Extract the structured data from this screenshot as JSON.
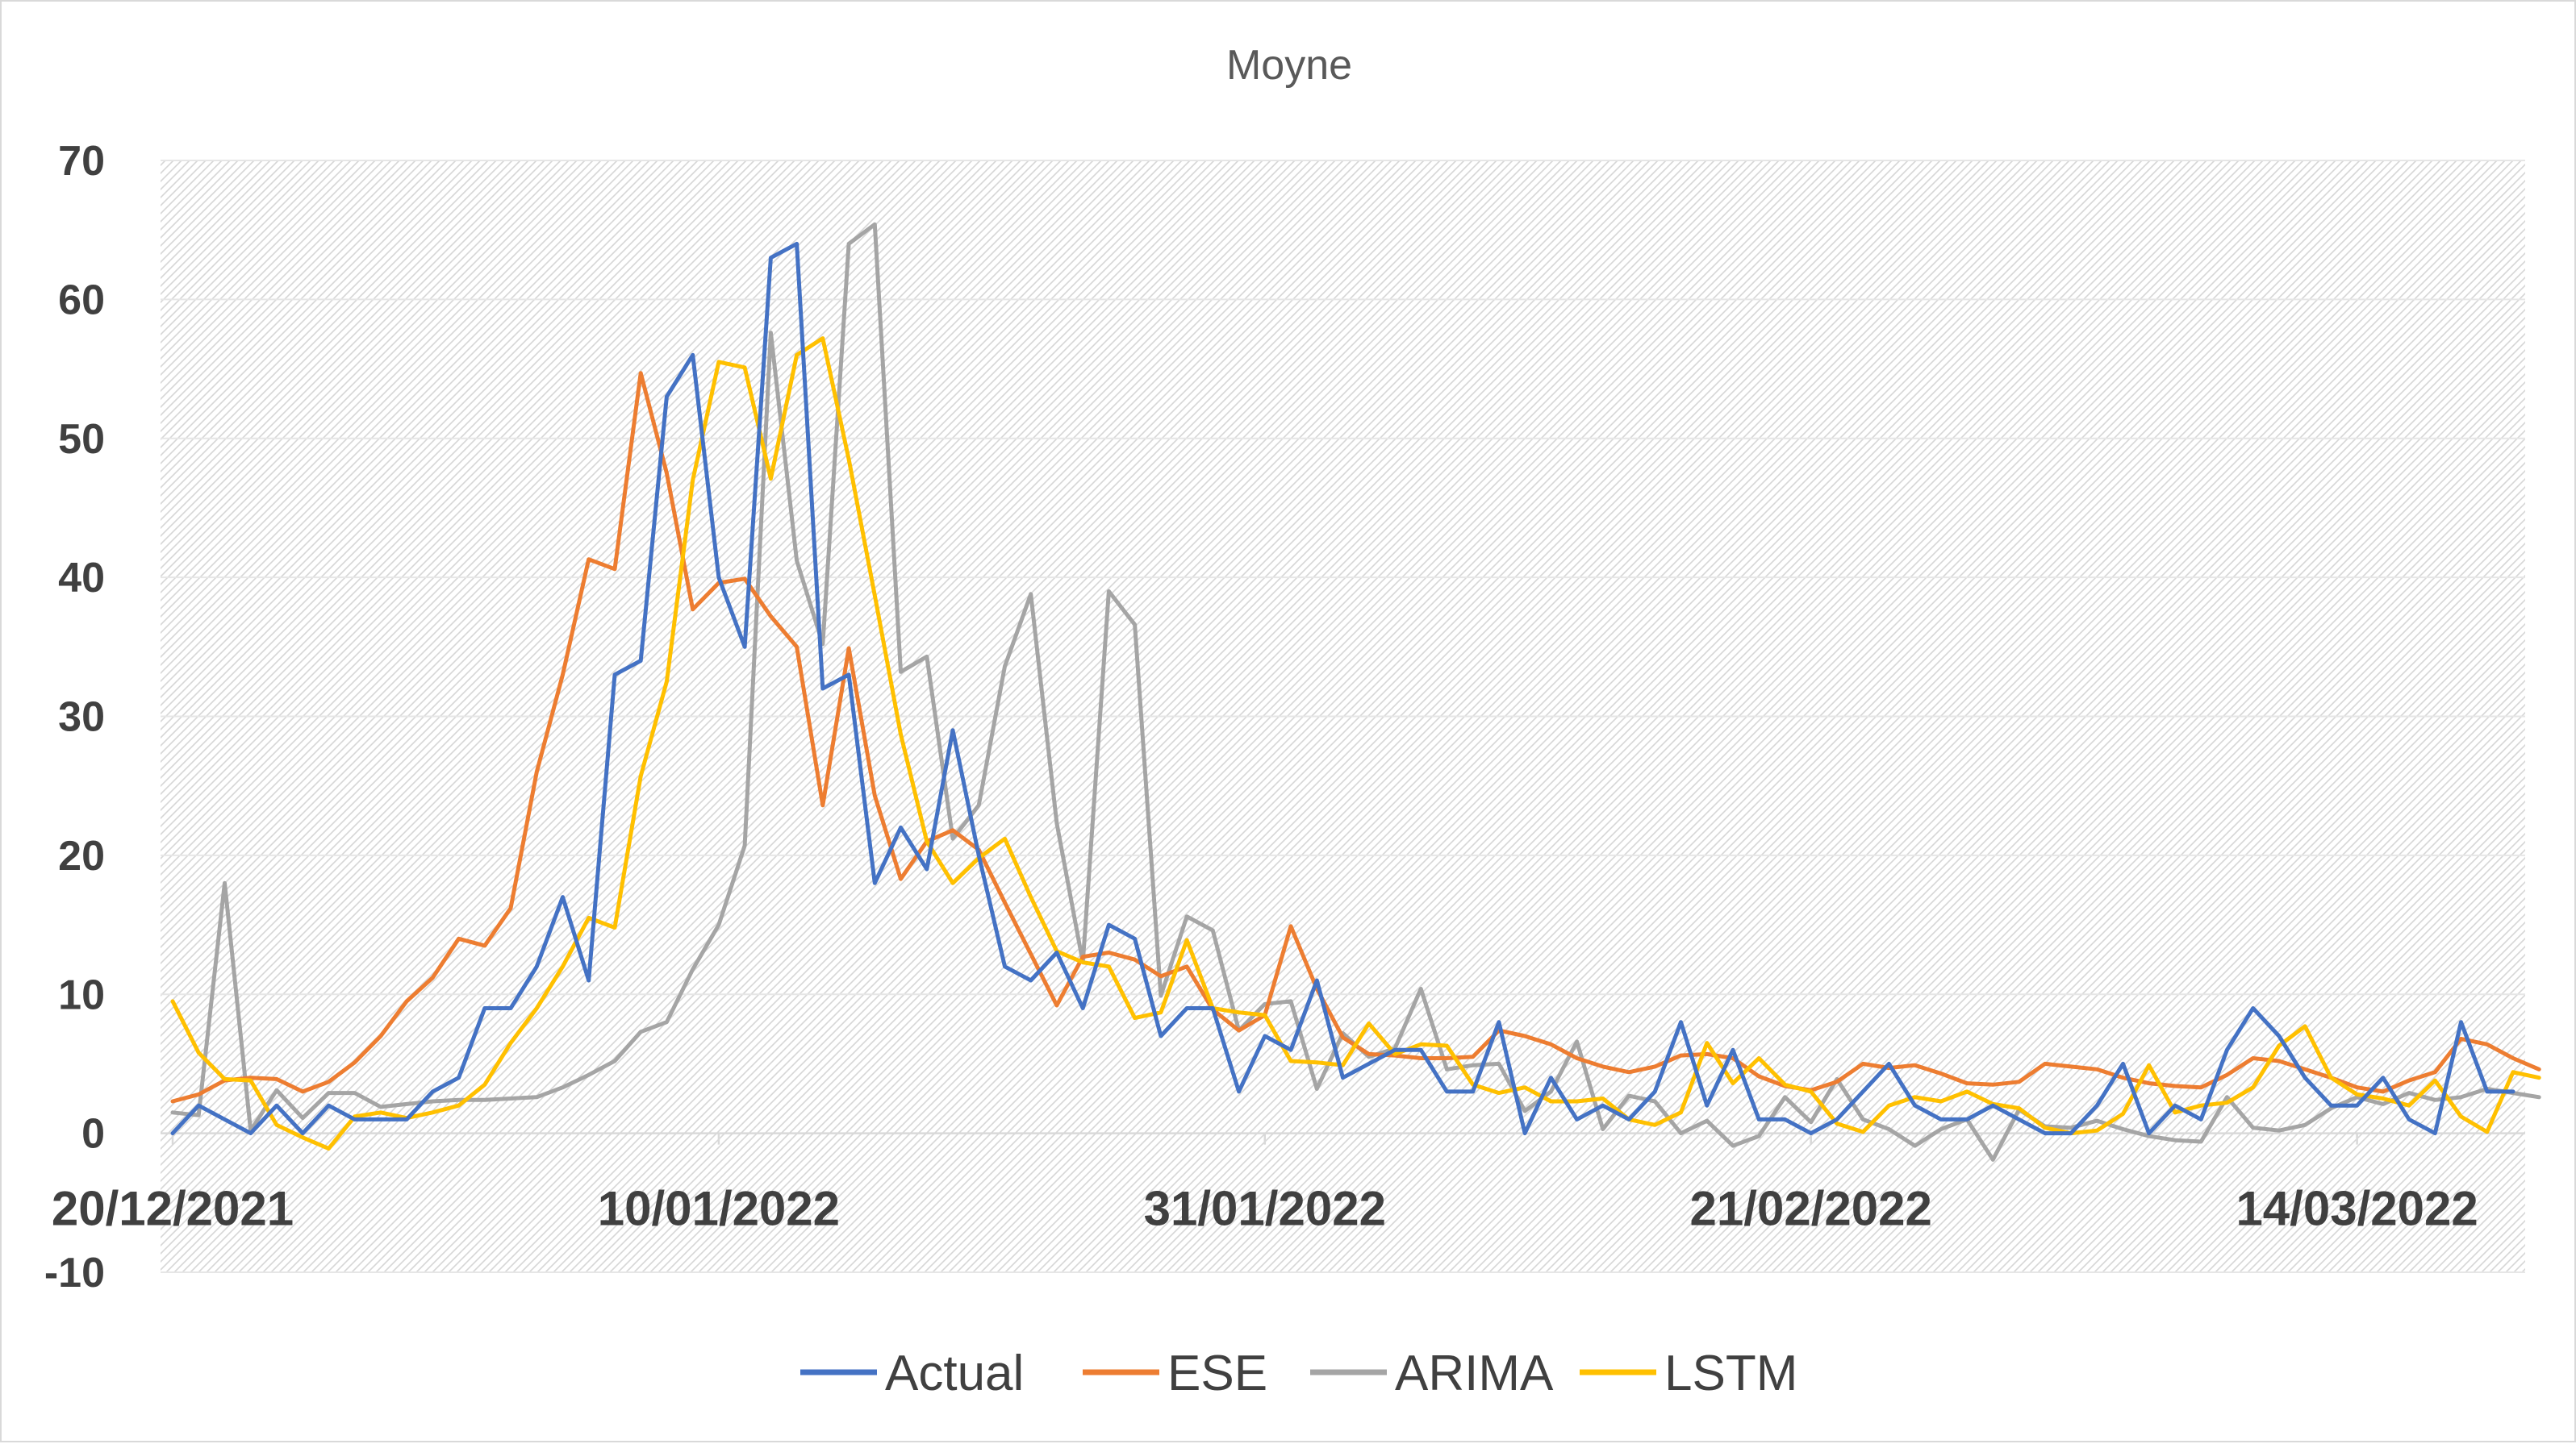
{
  "chart_data": {
    "type": "line",
    "title": "Moyne",
    "xlabel": "",
    "ylabel": "",
    "ylim": [
      -10,
      70
    ],
    "yticks": [
      -10,
      0,
      10,
      20,
      30,
      40,
      50,
      60,
      70
    ],
    "x_start": "20/12/2021",
    "x_end": "2022-03-27",
    "x_tick_labels": [
      "20/12/2021",
      "10/01/2022",
      "31/01/2022",
      "21/02/2022",
      "14/03/2022"
    ],
    "grid": true,
    "legend_position": "bottom",
    "series": [
      {
        "name": "Actual",
        "color": "#4472C4",
        "values": [
          0,
          2,
          1,
          0,
          2,
          0,
          2,
          1,
          1,
          1,
          3,
          4,
          9,
          9,
          12,
          17,
          11,
          33,
          34,
          53,
          56,
          40,
          35,
          63,
          64,
          32,
          33,
          18,
          22,
          19,
          29,
          20,
          12,
          11,
          13,
          9,
          15,
          14,
          7,
          9,
          9,
          3,
          7,
          6,
          11,
          4,
          5,
          6,
          6,
          3,
          3,
          8,
          0,
          4,
          1,
          2,
          1,
          3,
          8,
          2,
          6,
          1,
          1,
          0,
          1,
          3,
          5,
          2,
          1,
          1,
          2,
          1,
          0,
          0,
          2,
          5,
          0,
          2,
          1,
          6,
          9,
          7,
          4,
          2,
          2,
          4,
          1,
          0,
          8,
          3,
          3
        ]
      },
      {
        "name": "ESE",
        "color": "#ED7D31",
        "values": [
          2.3,
          2.8,
          3.8,
          4.0,
          3.9,
          3.0,
          3.7,
          5.1,
          7.0,
          9.5,
          11.2,
          14.0,
          13.5,
          16.2,
          26.0,
          33.0,
          41.3,
          40.6,
          54.7,
          47.5,
          37.7,
          39.6,
          39.9,
          37.2,
          35.0,
          23.6,
          34.9,
          24.3,
          18.3,
          21.0,
          21.8,
          20.4,
          16.6,
          12.9,
          9.2,
          12.7,
          13.0,
          12.5,
          11.3,
          12.0,
          8.9,
          7.4,
          8.5,
          14.9,
          10.4,
          6.9,
          5.7,
          5.6,
          5.4,
          5.4,
          5.5,
          7.4,
          7.0,
          6.4,
          5.4,
          4.8,
          4.4,
          4.8,
          5.6,
          5.7,
          5.4,
          4.1,
          3.4,
          3.1,
          3.7,
          5.0,
          4.7,
          4.9,
          4.3,
          3.6,
          3.5,
          3.7,
          5.0,
          4.8,
          4.6,
          4.0,
          3.6,
          3.4,
          3.3,
          4.2,
          5.4,
          5.2,
          4.6,
          4.0,
          3.3,
          3.0,
          3.8,
          4.4,
          6.8,
          6.4,
          5.4,
          4.6
        ]
      },
      {
        "name": "ARIMA",
        "color": "#A5A5A5",
        "values": [
          1.5,
          1.3,
          18.0,
          0.2,
          3.1,
          1.1,
          2.9,
          2.9,
          1.9,
          2.1,
          2.3,
          2.4,
          2.4,
          2.5,
          2.6,
          3.3,
          4.2,
          5.2,
          7.3,
          8.0,
          11.8,
          15.0,
          20.7,
          57.6,
          41.2,
          35.2,
          64.0,
          65.4,
          33.2,
          34.3,
          21.2,
          23.6,
          33.6,
          38.8,
          22.3,
          12.3,
          39.0,
          36.6,
          9.9,
          15.6,
          14.6,
          7.4,
          9.3,
          9.5,
          3.2,
          7.2,
          5.5,
          6.1,
          10.4,
          4.6,
          4.9,
          5.0,
          1.6,
          3.0,
          6.6,
          0.3,
          2.7,
          2.3,
          0.0,
          0.9,
          -0.9,
          -0.2,
          2.6,
          0.8,
          3.9,
          1.0,
          0.3,
          -0.9,
          0.3,
          1.0,
          -1.9,
          1.7,
          0.5,
          0.4,
          0.9,
          0.3,
          -0.2,
          -0.5,
          -0.6,
          2.6,
          0.4,
          0.2,
          0.6,
          1.8,
          2.6,
          2.1,
          2.9,
          2.4,
          2.6,
          3.2,
          2.9,
          2.6
        ]
      },
      {
        "name": "LSTM",
        "color": "#FFC000",
        "values": [
          9.5,
          5.8,
          3.9,
          3.8,
          0.6,
          -0.3,
          -1.1,
          1.2,
          1.5,
          1.1,
          1.5,
          2.0,
          3.5,
          6.5,
          9.0,
          12.0,
          15.5,
          14.8,
          25.7,
          32.5,
          47.0,
          55.5,
          55.1,
          47.1,
          56.0,
          57.2,
          48.5,
          38.7,
          28.7,
          21.0,
          18.0,
          19.8,
          21.2,
          17.0,
          13.1,
          12.3,
          12.0,
          8.3,
          8.7,
          13.9,
          9.0,
          8.7,
          8.5,
          5.2,
          5.1,
          4.9,
          7.9,
          5.7,
          6.4,
          6.3,
          3.5,
          2.9,
          3.3,
          2.3,
          2.3,
          2.5,
          1.0,
          0.6,
          1.5,
          6.5,
          3.6,
          5.4,
          3.5,
          3.0,
          0.7,
          0.1,
          2.0,
          2.6,
          2.3,
          3.0,
          2.1,
          1.8,
          0.4,
          0.0,
          0.2,
          1.4,
          4.9,
          1.5,
          2.0,
          2.2,
          3.3,
          6.3,
          7.7,
          4.0,
          2.8,
          2.5,
          2.0,
          3.8,
          1.2,
          0.1,
          4.4,
          4.0
        ]
      }
    ]
  }
}
